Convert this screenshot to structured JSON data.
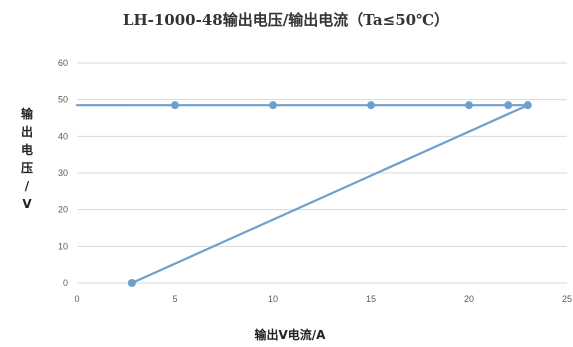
{
  "chart_data": {
    "type": "line",
    "title": "LH-1000-48输出电压/输出电流（Ta≤50℃）",
    "xlabel": "输出V电流/A",
    "ylabel_chars": [
      "输",
      "出",
      "电",
      "压",
      "/",
      "V"
    ],
    "xlim": [
      0,
      25
    ],
    "ylim": [
      0,
      60
    ],
    "xticks": [
      0,
      5,
      10,
      15,
      20,
      25
    ],
    "yticks": [
      0,
      10,
      20,
      30,
      40,
      50,
      60
    ],
    "grid": true,
    "legend": "none",
    "colors": {
      "series": "#6f9fcb",
      "grid": "#d9d9d9",
      "text": "#333333",
      "ticks": "#595959"
    },
    "series": [
      {
        "points": [
          {
            "x": 0,
            "y": 48.5
          },
          {
            "x": 5,
            "y": 48.5
          },
          {
            "x": 10,
            "y": 48.5
          },
          {
            "x": 15,
            "y": 48.5
          },
          {
            "x": 20,
            "y": 48.5
          },
          {
            "x": 22,
            "y": 48.5
          },
          {
            "x": 23,
            "y": 48.5
          }
        ],
        "markers": [
          5,
          10,
          15,
          20,
          22,
          23
        ]
      },
      {
        "points": [
          {
            "x": 2.8,
            "y": 0
          },
          {
            "x": 23,
            "y": 48.5
          }
        ],
        "markers": [
          2.8
        ]
      }
    ]
  }
}
